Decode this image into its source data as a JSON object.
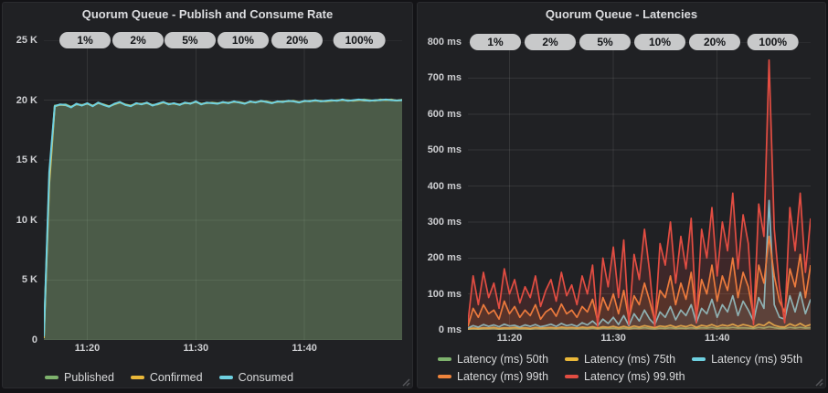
{
  "colors": {
    "page_bg": "#131316",
    "panel_bg": "#202124",
    "badge_bg": "#c8c9ca",
    "green": "#7EB26D",
    "yellow": "#EAB839",
    "cyan": "#6ED0E0",
    "orange": "#EF843C",
    "red": "#E24D42"
  },
  "chart_data": [
    {
      "type": "area",
      "title": "Quorum Queue - Publish and Consume Rate",
      "xlabel": "",
      "ylabel": "",
      "ylim": [
        0,
        25000
      ],
      "x_start": 0,
      "x_step": 0.5,
      "x_max": 33,
      "grid": true,
      "legend_position": "bottom-left",
      "annotations": [
        "1%",
        "2%",
        "5%",
        "10%",
        "20%",
        "100%"
      ],
      "x_ticks": [
        {
          "label": "11:20",
          "t": 4
        },
        {
          "label": "11:30",
          "t": 14
        },
        {
          "label": "11:40",
          "t": 24
        }
      ],
      "y_ticks": [
        {
          "label": "0",
          "v": 0
        },
        {
          "label": "5 K",
          "v": 5000
        },
        {
          "label": "10 K",
          "v": 10000
        },
        {
          "label": "15 K",
          "v": 15000
        },
        {
          "label": "20 K",
          "v": 20000
        },
        {
          "label": "25 K",
          "v": 25000
        }
      ],
      "series": [
        {
          "name": "Published",
          "color": "#7EB26D",
          "values": [
            200,
            13400,
            19550,
            19600,
            19650,
            19450,
            19650,
            19600,
            19700,
            19550,
            19750,
            19650,
            19500,
            19650,
            19800,
            19650,
            19550,
            19700,
            19700,
            19750,
            19600,
            19650,
            19800,
            19700,
            19700,
            19650,
            19750,
            19750,
            19850,
            19700,
            19750,
            19800,
            19750,
            19800,
            19800,
            19850,
            19850,
            19750,
            19850,
            19850,
            19900,
            19900,
            19800,
            19850,
            19900,
            19900,
            19950,
            19850,
            19900,
            19950,
            19950,
            19950,
            19900,
            19950,
            20000,
            20000,
            20000,
            19950,
            20000,
            20050,
            20000,
            19950,
            20050,
            20000,
            20050,
            19960,
            20040
          ]
        },
        {
          "name": "Confirmed",
          "color": "#EAB839",
          "values": [
            150,
            13000,
            19480,
            19620,
            19580,
            19430,
            19670,
            19570,
            19720,
            19520,
            19770,
            19620,
            19470,
            19670,
            19820,
            19620,
            19520,
            19720,
            19670,
            19770,
            19570,
            19670,
            19820,
            19670,
            19720,
            19620,
            19770,
            19720,
            19870,
            19670,
            19770,
            19770,
            19720,
            19820,
            19770,
            19870,
            19820,
            19720,
            19870,
            19820,
            19920,
            19870,
            19770,
            19870,
            19870,
            19920,
            19920,
            19820,
            19920,
            19920,
            19970,
            19920,
            19920,
            19970,
            19970,
            20020,
            19970,
            19970,
            20020,
            19970,
            19970,
            19980,
            20020,
            20020,
            20020,
            19970,
            20010
          ]
        },
        {
          "name": "Consumed",
          "color": "#6ED0E0",
          "values": [
            300,
            14000,
            19500,
            19650,
            19600,
            19400,
            19700,
            19550,
            19750,
            19500,
            19800,
            19600,
            19450,
            19700,
            19850,
            19600,
            19500,
            19750,
            19650,
            19800,
            19550,
            19700,
            19850,
            19650,
            19750,
            19600,
            19800,
            19700,
            19900,
            19650,
            19800,
            19750,
            19700,
            19850,
            19750,
            19900,
            19800,
            19700,
            19900,
            19800,
            19950,
            19850,
            19750,
            19900,
            19850,
            19950,
            19900,
            19800,
            19950,
            19900,
            20000,
            19900,
            19950,
            20000,
            19950,
            20050,
            19950,
            20000,
            20050,
            20000,
            19950,
            20000,
            20000,
            20050,
            20000,
            19980,
            20000
          ]
        }
      ]
    },
    {
      "type": "line",
      "title": "Quorum Queue - Latencies",
      "xlabel": "",
      "ylabel": "",
      "ylim": [
        0,
        800
      ],
      "x_start": 0,
      "x_step": 0.5,
      "x_max": 33,
      "grid": true,
      "legend_position": "bottom-left",
      "annotations": [
        "1%",
        "2%",
        "5%",
        "10%",
        "20%",
        "100%"
      ],
      "x_ticks": [
        {
          "label": "11:20",
          "t": 4
        },
        {
          "label": "11:30",
          "t": 14
        },
        {
          "label": "11:40",
          "t": 24
        }
      ],
      "y_ticks": [
        {
          "label": "0 ms",
          "v": 0
        },
        {
          "label": "100 ms",
          "v": 100
        },
        {
          "label": "200 ms",
          "v": 200
        },
        {
          "label": "300 ms",
          "v": 300
        },
        {
          "label": "400 ms",
          "v": 400
        },
        {
          "label": "500 ms",
          "v": 500
        },
        {
          "label": "600 ms",
          "v": 600
        },
        {
          "label": "700 ms",
          "v": 700
        },
        {
          "label": "800 ms",
          "v": 800
        }
      ],
      "series": [
        {
          "name": "Latency (ms) 50th",
          "color": "#7EB26D",
          "values": [
            2,
            3,
            2,
            3,
            3,
            4,
            2,
            3,
            3,
            4,
            3,
            3,
            2,
            4,
            3,
            3,
            4,
            3,
            4,
            3,
            4,
            3,
            4,
            3,
            5,
            3,
            5,
            4,
            5,
            3,
            5,
            3,
            5,
            4,
            6,
            4,
            3,
            5,
            4,
            6,
            4,
            5,
            4,
            6,
            4,
            6,
            5,
            7,
            4,
            6,
            5,
            7,
            5,
            6,
            5,
            4,
            7,
            5,
            9,
            6,
            4,
            4,
            7,
            5,
            7,
            5,
            6
          ]
        },
        {
          "name": "Latency (ms) 75th",
          "color": "#EAB839",
          "values": [
            3,
            5,
            4,
            6,
            5,
            7,
            4,
            6,
            5,
            7,
            5,
            6,
            4,
            7,
            5,
            6,
            7,
            5,
            8,
            6,
            7,
            5,
            8,
            6,
            9,
            5,
            9,
            7,
            10,
            6,
            10,
            6,
            11,
            8,
            12,
            9,
            6,
            11,
            9,
            13,
            8,
            12,
            9,
            14,
            7,
            13,
            10,
            15,
            9,
            14,
            11,
            16,
            10,
            15,
            12,
            8,
            16,
            12,
            22,
            13,
            9,
            8,
            17,
            11,
            18,
            10,
            15
          ]
        },
        {
          "name": "Latency (ms) 95th",
          "color": "#6ED0E0",
          "values": [
            5,
            12,
            8,
            15,
            10,
            14,
            9,
            16,
            11,
            13,
            8,
            14,
            10,
            15,
            9,
            12,
            16,
            10,
            18,
            12,
            15,
            10,
            20,
            14,
            25,
            12,
            30,
            18,
            35,
            15,
            40,
            12,
            45,
            25,
            55,
            30,
            15,
            50,
            35,
            65,
            28,
            55,
            40,
            70,
            20,
            60,
            45,
            85,
            35,
            70,
            50,
            95,
            40,
            80,
            55,
            25,
            90,
            60,
            360,
            70,
            35,
            30,
            95,
            50,
            105,
            45,
            85
          ]
        },
        {
          "name": "Latency (ms) 99th",
          "color": "#EF843C",
          "values": [
            10,
            60,
            35,
            70,
            45,
            55,
            30,
            80,
            45,
            65,
            35,
            55,
            40,
            70,
            30,
            50,
            60,
            38,
            72,
            45,
            55,
            35,
            65,
            50,
            85,
            25,
            90,
            55,
            100,
            45,
            110,
            30,
            95,
            70,
            130,
            80,
            25,
            110,
            90,
            150,
            70,
            130,
            85,
            160,
            35,
            140,
            100,
            180,
            80,
            150,
            110,
            200,
            90,
            160,
            120,
            40,
            180,
            130,
            260,
            150,
            80,
            50,
            170,
            120,
            210,
            90,
            180
          ]
        },
        {
          "name": "Latency (ms) 99.9th",
          "color": "#E24D42",
          "values": [
            20,
            150,
            70,
            160,
            90,
            130,
            60,
            170,
            100,
            140,
            75,
            120,
            90,
            150,
            65,
            110,
            140,
            80,
            160,
            95,
            125,
            70,
            150,
            100,
            180,
            10,
            200,
            120,
            230,
            90,
            250,
            15,
            210,
            140,
            280,
            160,
            10,
            240,
            180,
            300,
            130,
            260,
            170,
            310,
            20,
            280,
            200,
            340,
            150,
            300,
            220,
            380,
            170,
            320,
            240,
            15,
            350,
            260,
            750,
            280,
            120,
            20,
            340,
            220,
            380,
            160,
            310
          ]
        }
      ]
    }
  ]
}
